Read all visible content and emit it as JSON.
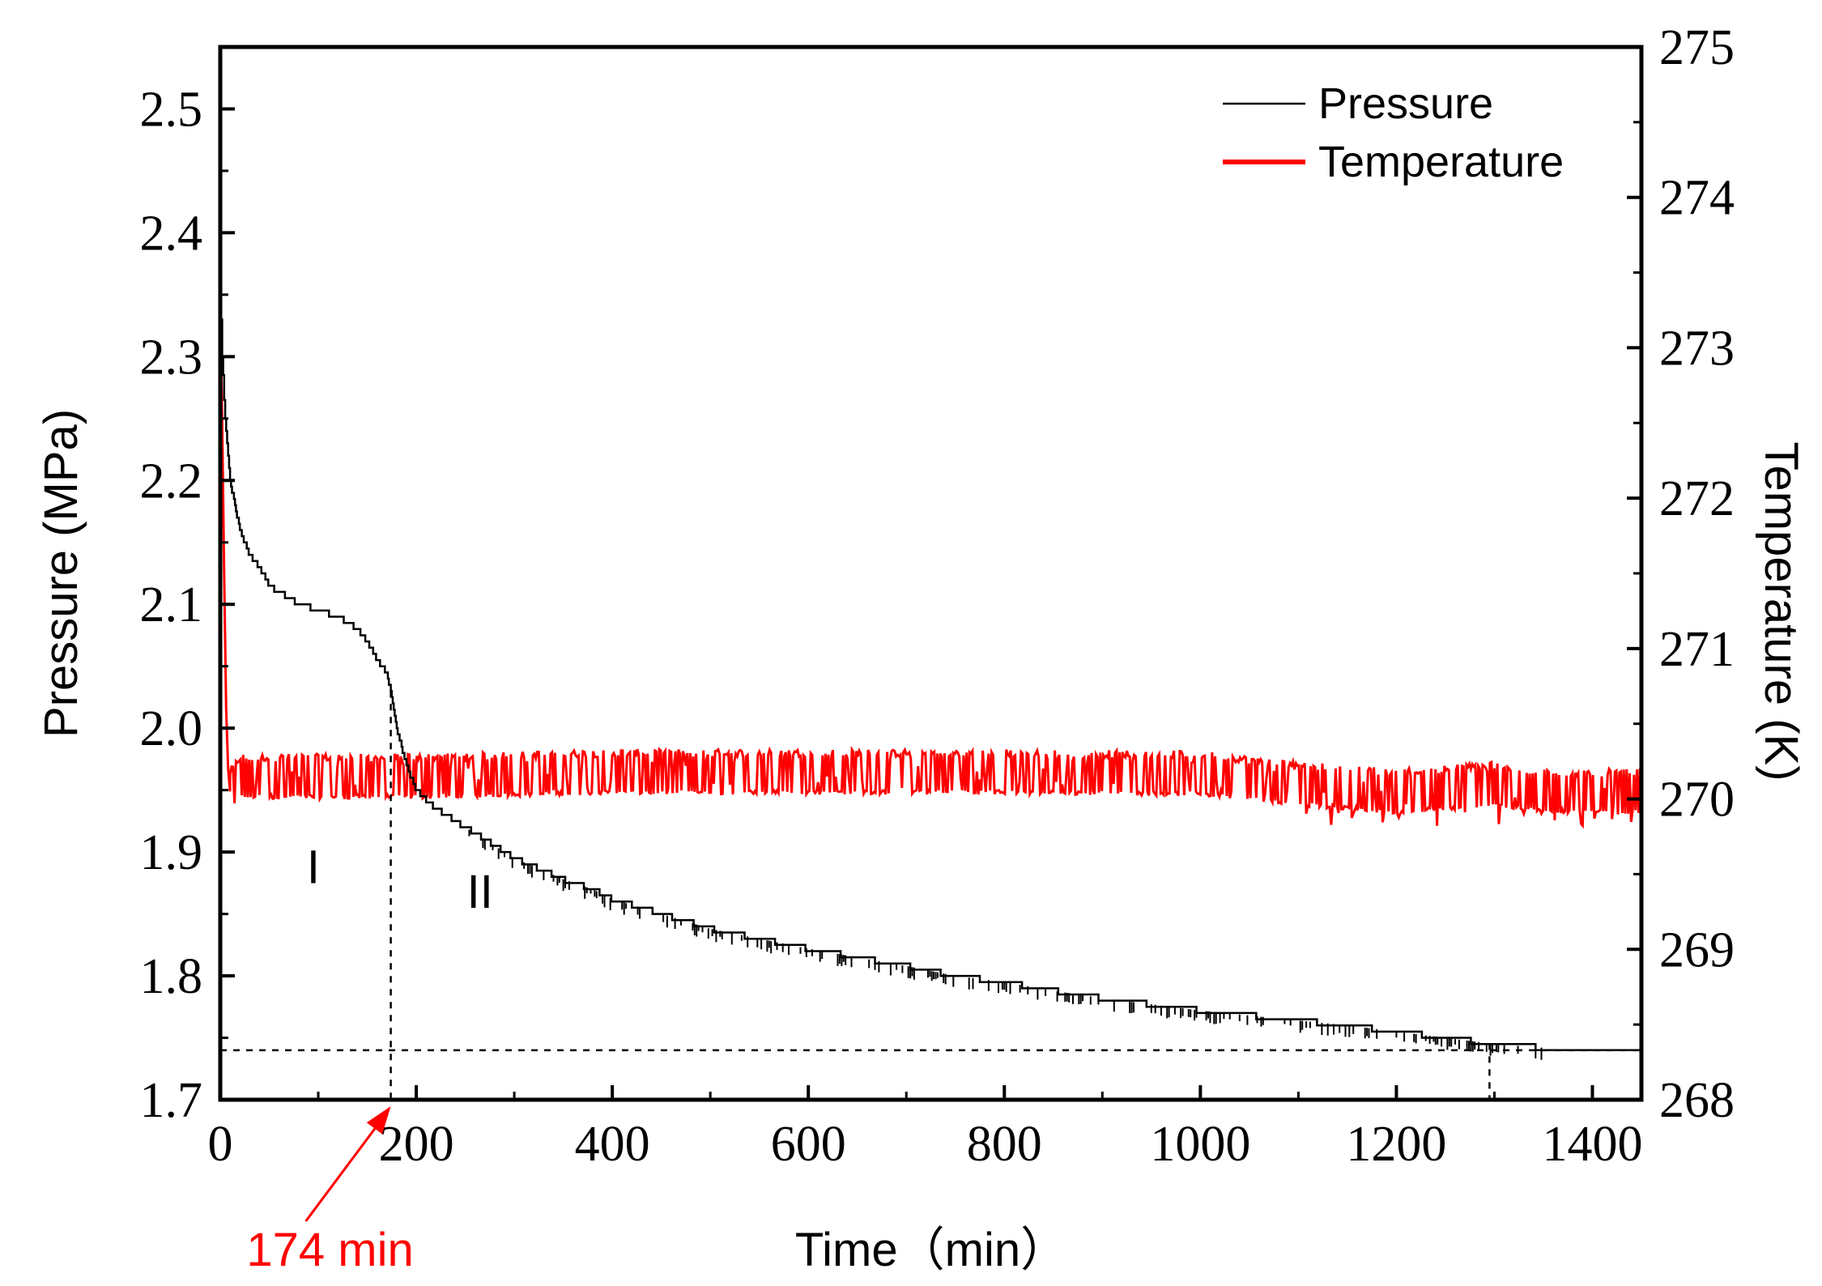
{
  "chart_data": {
    "type": "line",
    "title": "",
    "xlabel": "Time（min）",
    "ylabel_left": "Pressure (MPa)",
    "ylabel_right": "Temperature (K)",
    "xlim": [
      0,
      1450
    ],
    "ylim_left": [
      1.7,
      2.55
    ],
    "ylim_right": [
      268,
      275
    ],
    "x_ticks": [
      0,
      200,
      400,
      600,
      800,
      1000,
      1200,
      1400
    ],
    "x_tick_labels": [
      "0",
      "200",
      "400",
      "600",
      "800",
      "1000",
      "1200",
      "1400"
    ],
    "y_left_ticks": [
      1.7,
      1.8,
      1.9,
      2.0,
      2.1,
      2.2,
      2.3,
      2.4,
      2.5
    ],
    "y_left_tick_labels": [
      "1.7",
      "1.8",
      "1.9",
      "2.0",
      "2.1",
      "2.2",
      "2.3",
      "2.4",
      "2.5"
    ],
    "y_right_ticks": [
      268,
      269,
      270,
      271,
      272,
      273,
      274,
      275
    ],
    "y_right_tick_labels": [
      "268",
      "269",
      "270",
      "271",
      "272",
      "273",
      "274",
      "275"
    ],
    "legend": {
      "placement": "top-right",
      "entries": [
        "Pressure",
        "Temperature"
      ]
    },
    "series": [
      {
        "name": "Pressure",
        "axis": "left",
        "color": "#000000",
        "x": [
          0,
          2,
          5,
          10,
          15,
          20,
          30,
          40,
          50,
          60,
          70,
          80,
          90,
          100,
          120,
          140,
          150,
          160,
          170,
          174,
          180,
          190,
          200,
          220,
          250,
          280,
          300,
          330,
          350,
          380,
          400,
          430,
          450,
          480,
          500,
          550,
          600,
          650,
          700,
          750,
          800,
          850,
          900,
          950,
          1000,
          1050,
          1100,
          1150,
          1200,
          1250,
          1300,
          1350,
          1400,
          1450
        ],
        "y": [
          2.36,
          2.3,
          2.25,
          2.2,
          2.18,
          2.16,
          2.14,
          2.13,
          2.115,
          2.11,
          2.105,
          2.1,
          2.098,
          2.095,
          2.09,
          2.08,
          2.07,
          2.055,
          2.045,
          2.03,
          2.0,
          1.97,
          1.95,
          1.935,
          1.92,
          1.905,
          1.895,
          1.885,
          1.878,
          1.87,
          1.862,
          1.855,
          1.85,
          1.843,
          1.838,
          1.83,
          1.822,
          1.815,
          1.808,
          1.8,
          1.795,
          1.788,
          1.782,
          1.777,
          1.772,
          1.768,
          1.764,
          1.76,
          1.755,
          1.75,
          1.745,
          1.742,
          1.74,
          1.74
        ]
      },
      {
        "name": "Temperature",
        "axis": "right",
        "color": "#ff0000",
        "x": [
          0,
          2,
          4,
          6,
          8,
          10,
          20,
          100,
          200,
          400,
          600,
          800,
          1000,
          1100,
          1200,
          1300,
          1350,
          1400,
          1450
        ],
        "y": [
          273.2,
          272.5,
          271.5,
          270.6,
          270.2,
          270.05,
          270.15,
          270.15,
          270.15,
          270.18,
          270.18,
          270.18,
          270.17,
          270.1,
          270.05,
          270.1,
          270.05,
          270.05,
          270.05
        ],
        "noise_band": {
          "low": 270.0,
          "high": 270.3
        }
      }
    ],
    "reference_lines": [
      {
        "type": "horizontal",
        "axis": "left",
        "y": 1.74,
        "style": "dashed"
      },
      {
        "type": "vertical",
        "x": 174,
        "style": "dashed",
        "to_series": "Pressure"
      },
      {
        "type": "vertical",
        "x": 1295,
        "style": "dashed",
        "to_series": "Pressure"
      }
    ],
    "regions": [
      {
        "label": "I",
        "x": 95,
        "y": 1.875
      },
      {
        "label": "II",
        "x": 265,
        "y": 1.855
      }
    ],
    "annotations": [
      {
        "text": "174 min",
        "x": 174,
        "color": "#ff0000",
        "arrow": true
      }
    ]
  }
}
